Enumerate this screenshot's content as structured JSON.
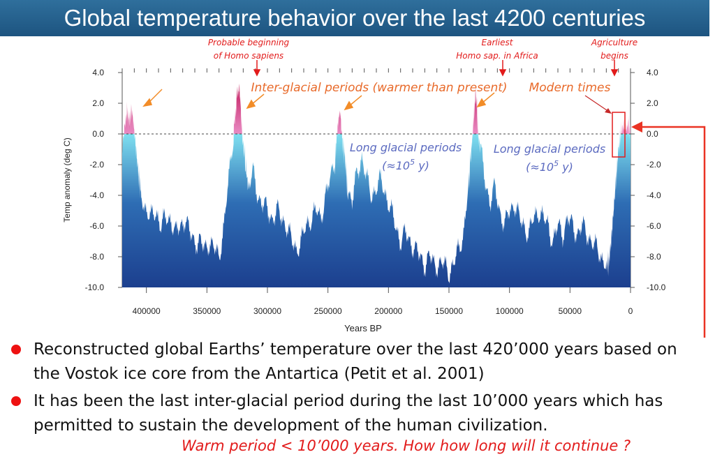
{
  "header": {
    "title": "Global temperature behavior over the last 4200 centuries"
  },
  "annotations": {
    "homo_sapiens": [
      "Probable beginning",
      "of Homo sapiens"
    ],
    "earliest": [
      "Earliest",
      "Homo sap. in Africa"
    ],
    "agriculture": [
      "Agriculture",
      "begins"
    ],
    "interglacial": "Inter-glacial periods (warmer than present)",
    "modern": "Modern times",
    "glacial": [
      "Long glacial periods",
      "(≈10",
      "5",
      " y)"
    ]
  },
  "bullets": [
    "Reconstructed global Earths’ temperature over the last 420’000 years based on the Vostok ice core from the Antartica (Petit et al. 2001)",
    "It has been the last inter-glacial period during the last 10’000 years which has permitted to sustain the development of the human civilization."
  ],
  "note": "Warm period < 10’000 years. How how long will it continue ?",
  "colors": {
    "glacial_dark": "#1c3f8e",
    "glacial_light": "#7fe0f0",
    "interglacial": "#e07ab2",
    "peak": "#c2185b",
    "annotation": "#e53935",
    "arrow": "#f28c28",
    "glacial_text": "#5c6bc0"
  },
  "chart_data": {
    "type": "area",
    "xlabel": "Years BP",
    "ylabel": "Temp anomaly (deg C)",
    "xlim": [
      420000,
      0
    ],
    "ylim": [
      -10,
      4
    ],
    "x_ticks": [
      400000,
      350000,
      300000,
      250000,
      200000,
      150000,
      100000,
      50000,
      0
    ],
    "x_tick_labels": [
      "400000",
      "350000",
      "300000",
      "250000",
      "200000",
      "150000",
      "100000",
      "50000",
      "0"
    ],
    "y_ticks": [
      4,
      2,
      0,
      -2,
      -4,
      -6,
      -8,
      -10
    ],
    "y_tick_labels": [
      "4.0",
      "2.0",
      "0.0",
      "-2.0",
      "-4.0",
      "-6.0",
      "-8.0",
      "-10.0"
    ],
    "reference_line": 0,
    "series": [
      {
        "x": [
          420000,
          418000,
          416000,
          414000,
          412000,
          410000,
          408000,
          406000,
          404000,
          400000,
          396000,
          392000,
          388000,
          384000,
          380000,
          376000,
          372000,
          368000,
          364000,
          360000,
          356000,
          352000,
          348000,
          344000,
          340000,
          336000,
          332000,
          328000,
          325000,
          323000,
          321000,
          318000,
          316000,
          312000,
          308000,
          304000,
          300000,
          296000,
          292000,
          288000,
          284000,
          280000,
          276000,
          272000,
          268000,
          264000,
          260000,
          256000,
          252000,
          248000,
          244000,
          242000,
          240000,
          238000,
          236000,
          234000,
          230000,
          226000,
          222000,
          218000,
          214000,
          210000,
          206000,
          202000,
          198000,
          194000,
          190000,
          186000,
          182000,
          178000,
          174000,
          170000,
          166000,
          162000,
          158000,
          154000,
          150000,
          146000,
          142000,
          138000,
          134000,
          131000,
          129000,
          128000,
          127000,
          126000,
          124000,
          120000,
          116000,
          112000,
          108000,
          104000,
          100000,
          96000,
          92000,
          88000,
          84000,
          80000,
          76000,
          72000,
          68000,
          64000,
          60000,
          56000,
          52000,
          48000,
          44000,
          40000,
          36000,
          32000,
          28000,
          24000,
          20000,
          18000,
          16000,
          14000,
          12000,
          10000,
          8000,
          6000,
          4000,
          2000,
          0
        ],
        "values": [
          -1.0,
          0.5,
          1.3,
          0.8,
          1.5,
          0.2,
          -1.5,
          -3.0,
          -4.0,
          -5.0,
          -5.5,
          -5.0,
          -6.0,
          -5.5,
          -5.5,
          -6.5,
          -6.0,
          -5.5,
          -6.5,
          -7.0,
          -7.0,
          -7.5,
          -7.0,
          -7.5,
          -8.0,
          -6.0,
          -3.0,
          0.0,
          2.5,
          3.0,
          0.0,
          -2.0,
          -3.5,
          -2.5,
          -4.0,
          -4.5,
          -5.0,
          -5.5,
          -5.0,
          -5.5,
          -6.0,
          -7.0,
          -7.5,
          -7.0,
          -6.0,
          -5.5,
          -5.0,
          -5.5,
          -4.0,
          -3.0,
          -1.5,
          0.5,
          1.5,
          -0.5,
          -1.5,
          -3.5,
          -4.5,
          -2.5,
          -1.5,
          -3.0,
          -4.0,
          -3.5,
          -3.0,
          -4.0,
          -5.0,
          -6.0,
          -7.0,
          -6.5,
          -7.0,
          -7.5,
          -8.0,
          -8.5,
          -8.0,
          -8.5,
          -8.5,
          -8.5,
          -9.0,
          -8.5,
          -7.5,
          -6.5,
          -3.5,
          -0.5,
          1.5,
          2.7,
          1.8,
          0.0,
          -1.0,
          -3.0,
          -4.5,
          -3.5,
          -5.0,
          -6.0,
          -5.0,
          -4.5,
          -5.5,
          -6.0,
          -6.5,
          -5.5,
          -5.0,
          -5.5,
          -6.0,
          -7.0,
          -6.0,
          -6.5,
          -5.5,
          -6.0,
          -6.5,
          -6.0,
          -6.5,
          -7.0,
          -7.5,
          -8.0,
          -8.5,
          -8.5,
          -7.0,
          -5.0,
          -3.0,
          -1.0,
          0.0,
          0.5,
          0.3,
          0.5,
          0.2
        ]
      }
    ]
  }
}
